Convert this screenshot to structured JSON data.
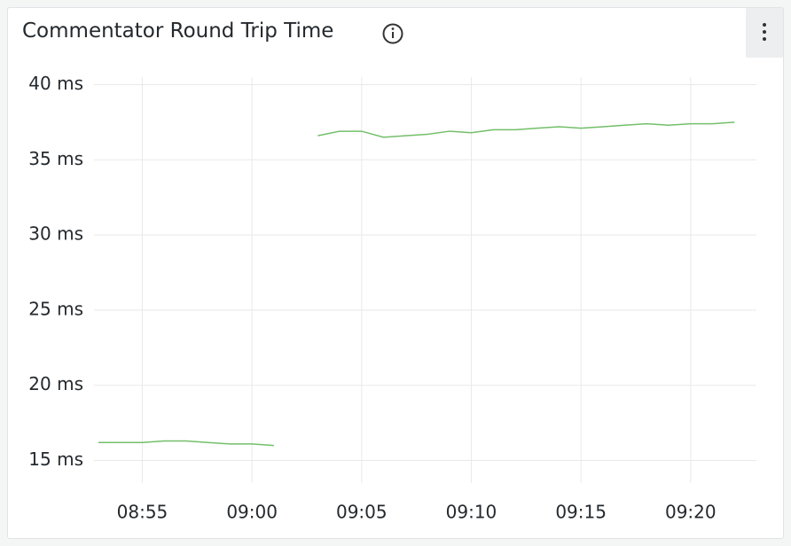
{
  "chart_data": {
    "type": "line",
    "title": "Commentator Round Trip Time",
    "x": [
      "08:53",
      "08:54",
      "08:55",
      "08:56",
      "08:57",
      "08:58",
      "08:59",
      "09:00",
      "09:01",
      "09:02",
      "09:03",
      "09:04",
      "09:05",
      "09:06",
      "09:07",
      "09:08",
      "09:09",
      "09:10",
      "09:11",
      "09:12",
      "09:13",
      "09:14",
      "09:15",
      "09:16",
      "09:17",
      "09:18",
      "09:19",
      "09:20",
      "09:21",
      "09:22"
    ],
    "series": [
      {
        "name": "Round Trip Time",
        "color": "#73bf69",
        "values": [
          16.2,
          16.2,
          16.2,
          16.3,
          16.3,
          16.2,
          16.1,
          16.1,
          16.0,
          null,
          36.6,
          36.9,
          36.9,
          36.5,
          36.6,
          36.7,
          36.9,
          36.8,
          37.0,
          37.0,
          37.1,
          37.2,
          37.1,
          37.2,
          37.3,
          37.4,
          37.3,
          37.4,
          37.4,
          37.5
        ]
      }
    ],
    "xlim": [
      "08:53",
      "09:23"
    ],
    "xticks": [
      "08:55",
      "09:00",
      "09:05",
      "09:10",
      "09:15",
      "09:20"
    ],
    "ylim": [
      13.5,
      40.5
    ],
    "yticks": [
      {
        "value": 15,
        "label": "15 ms"
      },
      {
        "value": 20,
        "label": "20 ms"
      },
      {
        "value": 25,
        "label": "25 ms"
      },
      {
        "value": 30,
        "label": "30 ms"
      },
      {
        "value": 35,
        "label": "35 ms"
      },
      {
        "value": 40,
        "label": "40 ms"
      }
    ],
    "grid": true
  }
}
